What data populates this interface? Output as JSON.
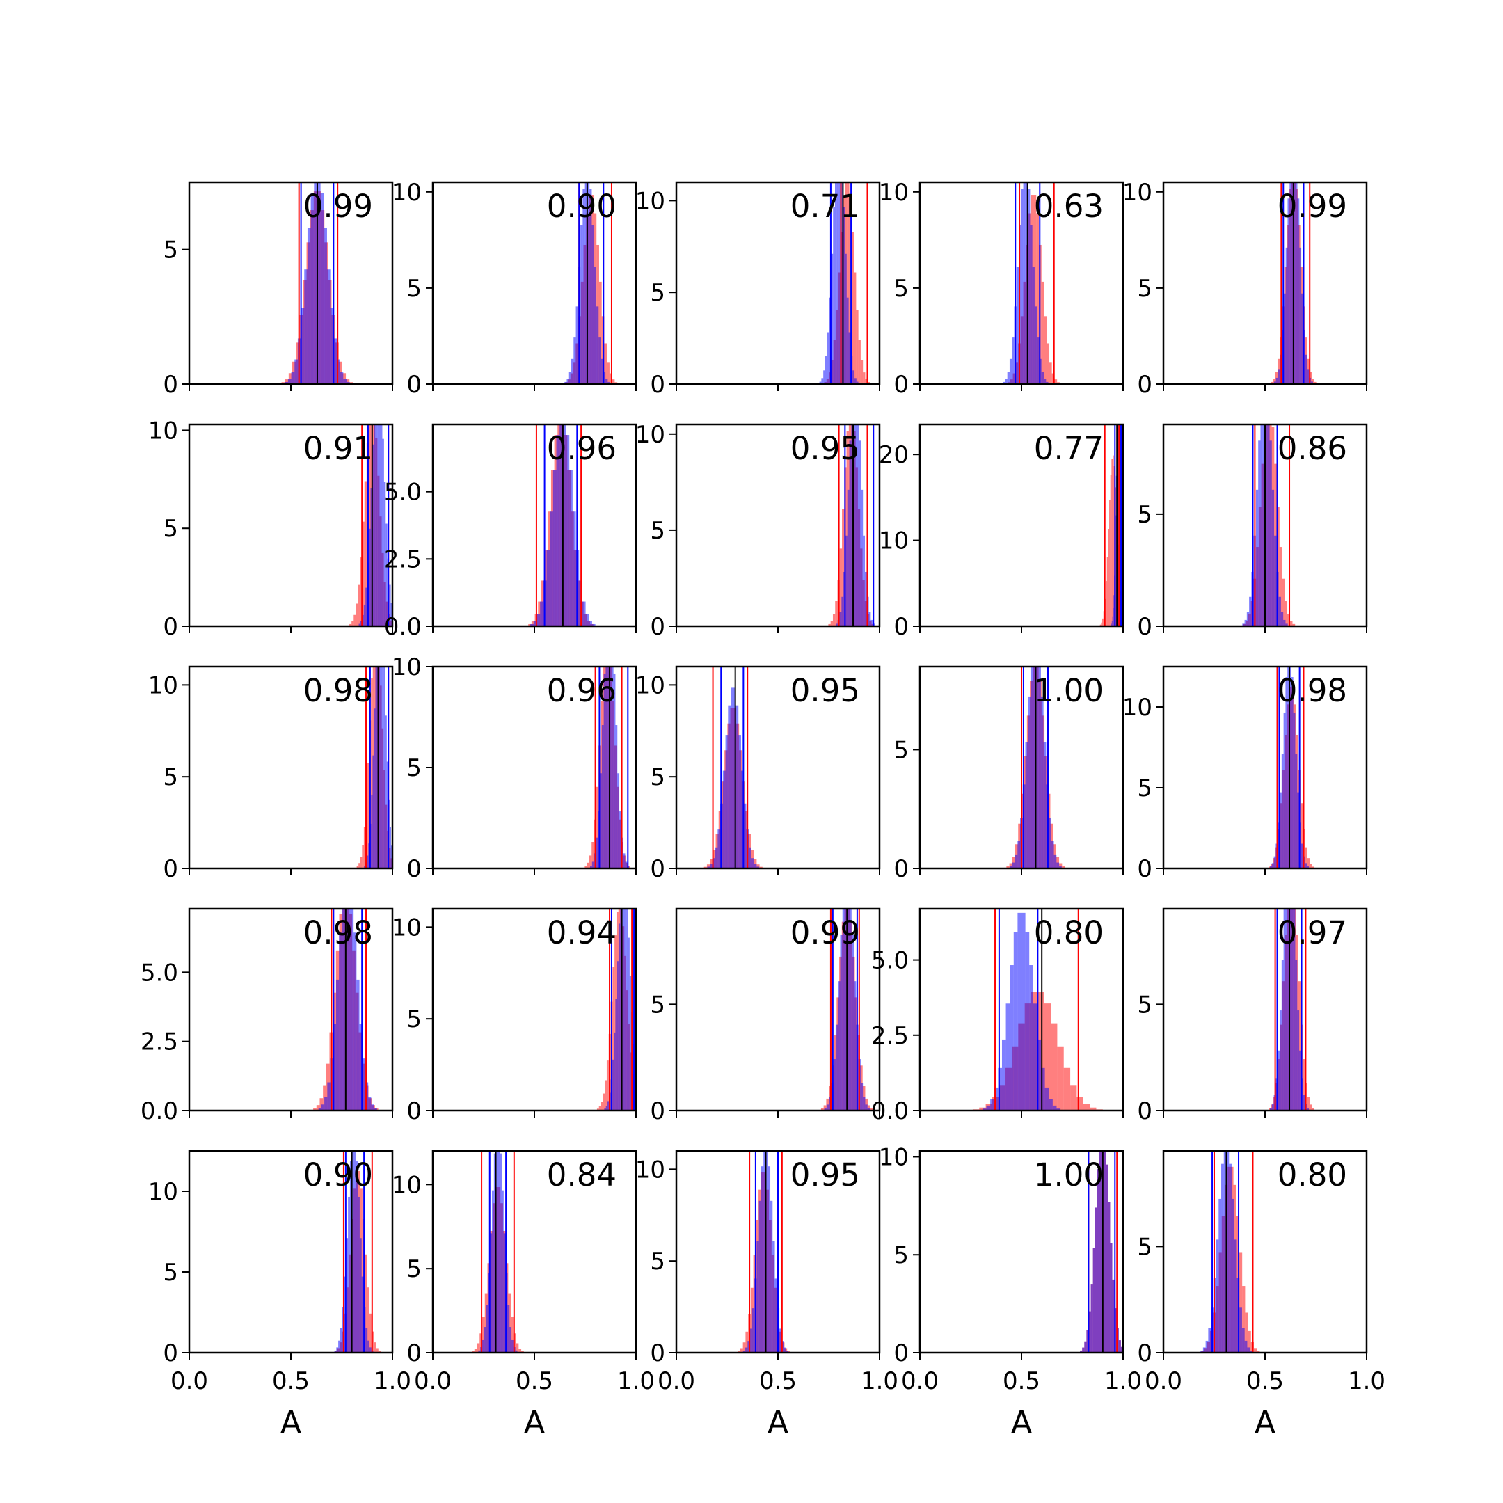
{
  "chart_data": {
    "type": "histogram-grid",
    "rows": 5,
    "cols": 5,
    "xlim": [
      0.0,
      1.0
    ],
    "x_ticks": [
      0.0,
      0.5,
      1.0
    ],
    "x_tick_labels": [
      "0.0",
      "0.5",
      "1.0"
    ],
    "xlabel": "A",
    "colors": {
      "hist_a": "#ff0000",
      "hist_b": "#0000ff",
      "overlap": "#7f00bf",
      "median_line": "#000000",
      "axes": "#000000"
    },
    "panels": [
      {
        "label": "0.99",
        "ylim": [
          0,
          7.5
        ],
        "y_ticks": [
          0,
          5
        ],
        "y_tick_labels": [
          "0",
          "5"
        ],
        "a_mean": 0.63,
        "a_sd": 0.055,
        "b_mean": 0.63,
        "b_sd": 0.05,
        "red_lines": [
          0.54,
          0.73
        ],
        "blue_lines": [
          0.55,
          0.71
        ],
        "black_line": 0.63
      },
      {
        "label": "0.90",
        "ylim": [
          0,
          10.5
        ],
        "y_ticks": [
          0,
          5,
          10
        ],
        "y_tick_labels": [
          "0",
          "5",
          "10"
        ],
        "a_mean": 0.78,
        "a_sd": 0.04,
        "b_mean": 0.76,
        "b_sd": 0.035,
        "red_lines": [
          0.72,
          0.88
        ],
        "blue_lines": [
          0.72,
          0.84
        ],
        "black_line": 0.76
      },
      {
        "label": "0.71",
        "ylim": [
          0,
          11
        ],
        "y_ticks": [
          0,
          5,
          10
        ],
        "y_tick_labels": [
          "0",
          "5",
          "10"
        ],
        "a_mean": 0.84,
        "a_sd": 0.035,
        "b_mean": 0.8,
        "b_sd": 0.03,
        "red_lines": [
          0.81,
          0.94
        ],
        "blue_lines": [
          0.76,
          0.86
        ],
        "black_line": 0.82
      },
      {
        "label": "0.63",
        "ylim": [
          0,
          10.5
        ],
        "y_ticks": [
          0,
          5,
          10
        ],
        "y_tick_labels": [
          "0",
          "5",
          "10"
        ],
        "a_mean": 0.56,
        "a_sd": 0.04,
        "b_mean": 0.52,
        "b_sd": 0.035,
        "red_lines": [
          0.49,
          0.66
        ],
        "blue_lines": [
          0.47,
          0.59
        ],
        "black_line": 0.53
      },
      {
        "label": "0.99",
        "ylim": [
          0,
          10.5
        ],
        "y_ticks": [
          0,
          5,
          10
        ],
        "y_tick_labels": [
          "0",
          "5",
          "10"
        ],
        "a_mean": 0.64,
        "a_sd": 0.035,
        "b_mean": 0.64,
        "b_sd": 0.03,
        "red_lines": [
          0.58,
          0.72
        ],
        "blue_lines": [
          0.59,
          0.69
        ],
        "black_line": 0.64
      },
      {
        "label": "0.91",
        "ylim": [
          0,
          10.3
        ],
        "y_ticks": [
          0,
          5,
          10
        ],
        "y_tick_labels": [
          "0",
          "5",
          "10"
        ],
        "a_mean": 0.9,
        "a_sd": 0.035,
        "b_mean": 0.93,
        "b_sd": 0.03,
        "red_lines": [
          0.85,
          0.98
        ],
        "blue_lines": [
          0.88,
          0.98
        ],
        "black_line": 0.9
      },
      {
        "label": "0.96",
        "ylim": [
          0,
          7.5
        ],
        "y_ticks": [
          0,
          2.5,
          5.0
        ],
        "y_tick_labels": [
          "0.0",
          "2.5",
          "5.0"
        ],
        "a_mean": 0.63,
        "a_sd": 0.05,
        "b_mean": 0.64,
        "b_sd": 0.05,
        "red_lines": [
          0.51,
          0.73
        ],
        "blue_lines": [
          0.55,
          0.71
        ],
        "black_line": 0.64
      },
      {
        "label": "0.95",
        "ylim": [
          0,
          10.5
        ],
        "y_ticks": [
          0,
          5,
          10
        ],
        "y_tick_labels": [
          "0",
          "5",
          "10"
        ],
        "a_mean": 0.86,
        "a_sd": 0.035,
        "b_mean": 0.88,
        "b_sd": 0.03,
        "red_lines": [
          0.8,
          0.94
        ],
        "blue_lines": [
          0.83,
          0.97
        ],
        "black_line": 0.87
      },
      {
        "label": "0.77",
        "ylim": [
          0,
          23.5
        ],
        "y_ticks": [
          0,
          10,
          20
        ],
        "y_tick_labels": [
          "0",
          "10",
          "20"
        ],
        "a_mean": 0.95,
        "a_sd": 0.02,
        "b_mean": 0.98,
        "b_sd": 0.012,
        "red_lines": [
          0.91,
          0.98
        ],
        "blue_lines": [
          0.96,
          0.99
        ],
        "black_line": 0.97
      },
      {
        "label": "0.86",
        "ylim": [
          0,
          9
        ],
        "y_ticks": [
          0,
          5
        ],
        "y_tick_labels": [
          "0",
          "5"
        ],
        "a_mean": 0.52,
        "a_sd": 0.04,
        "b_mean": 0.5,
        "b_sd": 0.035,
        "red_lines": [
          0.45,
          0.62
        ],
        "blue_lines": [
          0.44,
          0.56
        ],
        "black_line": 0.5
      },
      {
        "label": "0.98",
        "ylim": [
          0,
          11
        ],
        "y_ticks": [
          0,
          5,
          10
        ],
        "y_tick_labels": [
          "0",
          "5",
          "10"
        ],
        "a_mean": 0.92,
        "a_sd": 0.03,
        "b_mean": 0.94,
        "b_sd": 0.025,
        "red_lines": [
          0.87,
          0.98
        ],
        "blue_lines": [
          0.89,
          0.98
        ],
        "black_line": 0.93
      },
      {
        "label": "0.96",
        "ylim": [
          0,
          10
        ],
        "y_ticks": [
          0,
          5,
          10
        ],
        "y_tick_labels": [
          "0",
          "5",
          "10"
        ],
        "a_mean": 0.86,
        "a_sd": 0.035,
        "b_mean": 0.87,
        "b_sd": 0.03,
        "red_lines": [
          0.8,
          0.93
        ],
        "blue_lines": [
          0.82,
          0.96
        ],
        "black_line": 0.87
      },
      {
        "label": "0.95",
        "ylim": [
          0,
          11
        ],
        "y_ticks": [
          0,
          5,
          10
        ],
        "y_tick_labels": [
          "0",
          "5",
          "10"
        ],
        "a_mean": 0.28,
        "a_sd": 0.045,
        "b_mean": 0.28,
        "b_sd": 0.04,
        "red_lines": [
          0.18,
          0.35
        ],
        "blue_lines": [
          0.22,
          0.33
        ],
        "black_line": 0.29
      },
      {
        "label": "1.00",
        "ylim": [
          0,
          8.5
        ],
        "y_ticks": [
          0,
          5
        ],
        "y_tick_labels": [
          "0",
          "5"
        ],
        "a_mean": 0.57,
        "a_sd": 0.045,
        "b_mean": 0.57,
        "b_sd": 0.04,
        "red_lines": [
          0.5,
          0.63
        ],
        "blue_lines": [
          0.51,
          0.63
        ],
        "black_line": 0.57
      },
      {
        "label": "0.98",
        "ylim": [
          0,
          12.5
        ],
        "y_ticks": [
          0,
          5,
          10
        ],
        "y_tick_labels": [
          "0",
          "5",
          "10"
        ],
        "a_mean": 0.63,
        "a_sd": 0.035,
        "b_mean": 0.62,
        "b_sd": 0.03,
        "red_lines": [
          0.56,
          0.69
        ],
        "blue_lines": [
          0.57,
          0.67
        ],
        "black_line": 0.62
      },
      {
        "label": "0.98",
        "ylim": [
          0,
          7.3
        ],
        "y_ticks": [
          0,
          2.5,
          5.0
        ],
        "y_tick_labels": [
          "0.0",
          "2.5",
          "5.0"
        ],
        "a_mean": 0.77,
        "a_sd": 0.05,
        "b_mean": 0.78,
        "b_sd": 0.045,
        "red_lines": [
          0.7,
          0.87
        ],
        "blue_lines": [
          0.71,
          0.85
        ],
        "black_line": 0.77
      },
      {
        "label": "0.94",
        "ylim": [
          0,
          11
        ],
        "y_ticks": [
          0,
          5,
          10
        ],
        "y_tick_labels": [
          "0",
          "5",
          "10"
        ],
        "a_mean": 0.92,
        "a_sd": 0.035,
        "b_mean": 0.94,
        "b_sd": 0.03,
        "red_lines": [
          0.87,
          0.98
        ],
        "blue_lines": [
          0.88,
          0.99
        ],
        "black_line": 0.93
      },
      {
        "label": "0.99",
        "ylim": [
          0,
          9.5
        ],
        "y_ticks": [
          0,
          5
        ],
        "y_tick_labels": [
          "0",
          "5"
        ],
        "a_mean": 0.84,
        "a_sd": 0.04,
        "b_mean": 0.84,
        "b_sd": 0.035,
        "red_lines": [
          0.76,
          0.9
        ],
        "blue_lines": [
          0.77,
          0.89
        ],
        "black_line": 0.84
      },
      {
        "label": "0.80",
        "ylim": [
          0,
          6.7
        ],
        "y_ticks": [
          0,
          2.5,
          5.0
        ],
        "y_tick_labels": [
          "0.0",
          "2.5",
          "5.0"
        ],
        "a_mean": 0.58,
        "a_sd": 0.1,
        "b_mean": 0.5,
        "b_sd": 0.06,
        "red_lines": [
          0.37,
          0.78
        ],
        "blue_lines": [
          0.39,
          0.58
        ],
        "black_line": 0.6
      },
      {
        "label": "0.97",
        "ylim": [
          0,
          9.5
        ],
        "y_ticks": [
          0,
          5
        ],
        "y_tick_labels": [
          "0",
          "5"
        ],
        "a_mean": 0.63,
        "a_sd": 0.035,
        "b_mean": 0.62,
        "b_sd": 0.03,
        "red_lines": [
          0.55,
          0.7
        ],
        "blue_lines": [
          0.56,
          0.68
        ],
        "black_line": 0.62
      },
      {
        "label": "0.90",
        "ylim": [
          0,
          12.5
        ],
        "y_ticks": [
          0,
          5,
          10
        ],
        "y_tick_labels": [
          "0",
          "5",
          "10"
        ],
        "a_mean": 0.83,
        "a_sd": 0.035,
        "b_mean": 0.81,
        "b_sd": 0.03,
        "red_lines": [
          0.76,
          0.9
        ],
        "blue_lines": [
          0.77,
          0.86
        ],
        "black_line": 0.8
      },
      {
        "label": "0.84",
        "ylim": [
          0,
          12
        ],
        "y_ticks": [
          0,
          5,
          10
        ],
        "y_tick_labels": [
          "0",
          "5",
          "10"
        ],
        "a_mean": 0.32,
        "a_sd": 0.04,
        "b_mean": 0.32,
        "b_sd": 0.03,
        "red_lines": [
          0.24,
          0.4
        ],
        "blue_lines": [
          0.28,
          0.36
        ],
        "black_line": 0.31
      },
      {
        "label": "0.95",
        "ylim": [
          0,
          11
        ],
        "y_ticks": [
          0,
          5,
          10
        ],
        "y_tick_labels": [
          "0",
          "5",
          "10"
        ],
        "a_mean": 0.43,
        "a_sd": 0.04,
        "b_mean": 0.44,
        "b_sd": 0.035,
        "red_lines": [
          0.36,
          0.52
        ],
        "blue_lines": [
          0.39,
          0.5
        ],
        "black_line": 0.44
      },
      {
        "label": "1.00",
        "ylim": [
          0,
          10.3
        ],
        "y_ticks": [
          0,
          5,
          10
        ],
        "y_tick_labels": [
          "0",
          "5",
          "10"
        ],
        "a_mean": 0.9,
        "a_sd": 0.035,
        "b_mean": 0.9,
        "b_sd": 0.035,
        "red_lines": [
          0.83,
          0.97
        ],
        "blue_lines": [
          0.83,
          0.96
        ],
        "black_line": 0.9
      },
      {
        "label": "0.80",
        "ylim": [
          0,
          9.5
        ],
        "y_ticks": [
          0,
          5
        ],
        "y_tick_labels": [
          "0",
          "5"
        ],
        "a_mean": 0.33,
        "a_sd": 0.045,
        "b_mean": 0.31,
        "b_sd": 0.04,
        "red_lines": [
          0.25,
          0.44
        ],
        "blue_lines": [
          0.24,
          0.37
        ],
        "black_line": 0.31
      }
    ]
  }
}
